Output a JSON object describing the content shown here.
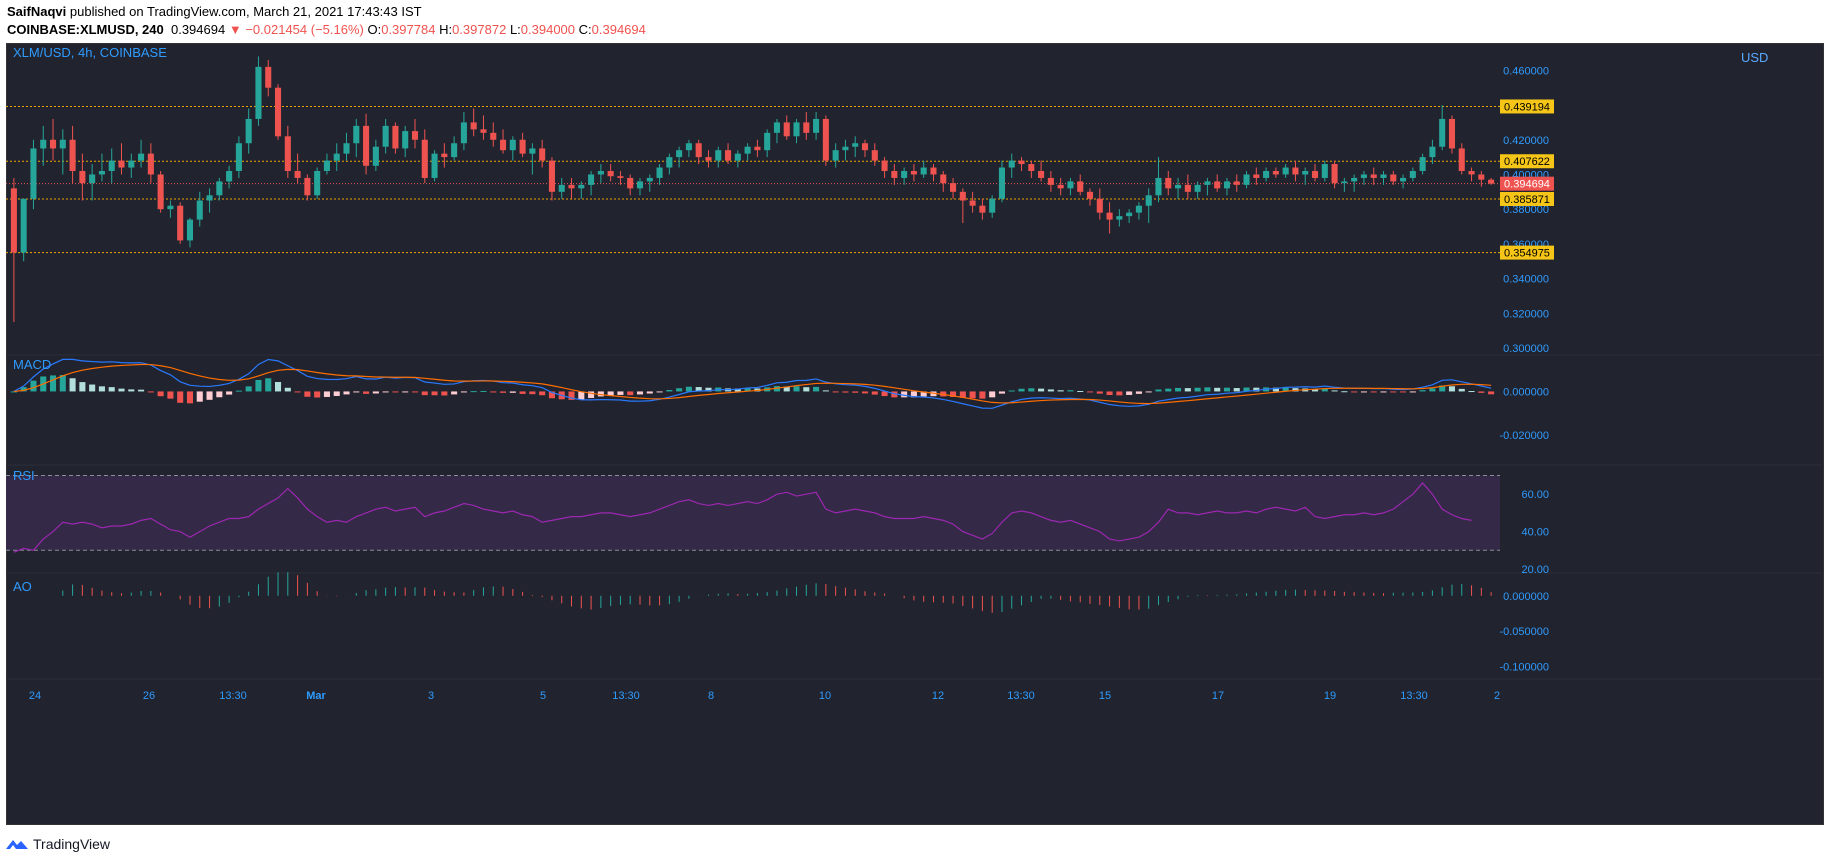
{
  "header": {
    "author": "SaifNaqvi",
    "published": "published on TradingView.com, March 21, 2021 17:43:43 IST",
    "symbol": "COINBASE:XLMUSD, 240",
    "last": "0.394694",
    "change": "▼ −0.021454 (−5.16%)",
    "o_label": "O:",
    "o_value": "0.397784",
    "h_label": "H:",
    "h_value": "0.397872",
    "l_label": "L:",
    "l_value": "0.394000",
    "c_label": "C:",
    "c_value": "0.394694"
  },
  "footer": {
    "brand": "TradingView"
  },
  "colors": {
    "background": "#21242e",
    "up": "#26a69a",
    "down": "#ef5350",
    "axis_text": "#2f9bff",
    "level_line": "#f0a500",
    "level_label_bg": "#f5c518",
    "last_price_bg": "#ef5350",
    "macd_line": "#2979ff",
    "signal_line": "#ff6d00",
    "rsi_line": "#9c27b0",
    "rsi_band": "#3a2a4e",
    "ao_up": "#26a69a",
    "ao_down": "#ef5350"
  },
  "chart_data": {
    "type": "candlestick",
    "title": "XLM/USD, 4h, COINBASE",
    "y_unit": "USD",
    "price_axis_ticks": [
      "0.460000",
      "0.420000",
      "0.400000",
      "0.380000",
      "0.360000",
      "0.340000",
      "0.320000",
      "0.300000"
    ],
    "price_range": [
      0.3,
      0.47
    ],
    "x_tick_labels": [
      "24",
      "26",
      "13:30",
      "Mar",
      "3",
      "5",
      "13:30",
      "8",
      "10",
      "12",
      "13:30",
      "15",
      "17",
      "19",
      "13:30",
      "2"
    ],
    "horizontal_levels": [
      0.439194,
      0.407622,
      0.385871,
      0.354975
    ],
    "level_labels": [
      "0.439194",
      "0.407622",
      "0.385871",
      "0.354975"
    ],
    "last_price": 0.394694,
    "last_price_label": "0.394694",
    "candles_ohlc": [
      [
        0.392,
        0.398,
        0.315,
        0.355
      ],
      [
        0.355,
        0.362,
        0.35,
        0.386
      ],
      [
        0.386,
        0.42,
        0.38,
        0.415
      ],
      [
        0.415,
        0.428,
        0.405,
        0.42
      ],
      [
        0.42,
        0.432,
        0.408,
        0.415
      ],
      [
        0.415,
        0.426,
        0.4,
        0.42
      ],
      [
        0.42,
        0.428,
        0.395,
        0.402
      ],
      [
        0.402,
        0.412,
        0.385,
        0.395
      ],
      [
        0.395,
        0.406,
        0.385,
        0.4
      ],
      [
        0.4,
        0.412,
        0.396,
        0.402
      ],
      [
        0.402,
        0.415,
        0.395,
        0.408
      ],
      [
        0.408,
        0.418,
        0.4,
        0.404
      ],
      [
        0.404,
        0.412,
        0.398,
        0.408
      ],
      [
        0.408,
        0.42,
        0.404,
        0.412
      ],
      [
        0.412,
        0.418,
        0.395,
        0.4
      ],
      [
        0.4,
        0.402,
        0.378,
        0.38
      ],
      [
        0.38,
        0.385,
        0.375,
        0.382
      ],
      [
        0.382,
        0.384,
        0.36,
        0.362
      ],
      [
        0.362,
        0.375,
        0.358,
        0.374
      ],
      [
        0.374,
        0.39,
        0.37,
        0.385
      ],
      [
        0.385,
        0.392,
        0.378,
        0.388
      ],
      [
        0.388,
        0.398,
        0.385,
        0.396
      ],
      [
        0.396,
        0.405,
        0.392,
        0.402
      ],
      [
        0.402,
        0.422,
        0.398,
        0.418
      ],
      [
        0.418,
        0.438,
        0.412,
        0.432
      ],
      [
        0.432,
        0.468,
        0.428,
        0.462
      ],
      [
        0.462,
        0.466,
        0.445,
        0.45
      ],
      [
        0.45,
        0.452,
        0.42,
        0.422
      ],
      [
        0.422,
        0.428,
        0.398,
        0.402
      ],
      [
        0.402,
        0.412,
        0.395,
        0.398
      ],
      [
        0.398,
        0.4,
        0.385,
        0.388
      ],
      [
        0.388,
        0.404,
        0.386,
        0.402
      ],
      [
        0.402,
        0.412,
        0.4,
        0.408
      ],
      [
        0.408,
        0.418,
        0.402,
        0.412
      ],
      [
        0.412,
        0.424,
        0.408,
        0.418
      ],
      [
        0.418,
        0.432,
        0.41,
        0.428
      ],
      [
        0.428,
        0.435,
        0.4,
        0.405
      ],
      [
        0.405,
        0.42,
        0.402,
        0.416
      ],
      [
        0.416,
        0.432,
        0.412,
        0.428
      ],
      [
        0.428,
        0.43,
        0.412,
        0.415
      ],
      [
        0.415,
        0.428,
        0.41,
        0.425
      ],
      [
        0.425,
        0.432,
        0.415,
        0.42
      ],
      [
        0.42,
        0.426,
        0.395,
        0.398
      ],
      [
        0.398,
        0.414,
        0.396,
        0.412
      ],
      [
        0.412,
        0.418,
        0.404,
        0.41
      ],
      [
        0.41,
        0.422,
        0.408,
        0.418
      ],
      [
        0.418,
        0.436,
        0.414,
        0.43
      ],
      [
        0.43,
        0.438,
        0.422,
        0.426
      ],
      [
        0.426,
        0.434,
        0.42,
        0.424
      ],
      [
        0.424,
        0.43,
        0.416,
        0.42
      ],
      [
        0.42,
        0.426,
        0.412,
        0.414
      ],
      [
        0.414,
        0.422,
        0.408,
        0.42
      ],
      [
        0.42,
        0.424,
        0.41,
        0.412
      ],
      [
        0.412,
        0.418,
        0.4,
        0.415
      ],
      [
        0.415,
        0.42,
        0.404,
        0.408
      ],
      [
        0.408,
        0.41,
        0.385,
        0.39
      ],
      [
        0.39,
        0.398,
        0.386,
        0.394
      ],
      [
        0.394,
        0.398,
        0.386,
        0.392
      ],
      [
        0.392,
        0.396,
        0.386,
        0.394
      ],
      [
        0.394,
        0.402,
        0.388,
        0.4
      ],
      [
        0.4,
        0.406,
        0.395,
        0.402
      ],
      [
        0.402,
        0.406,
        0.396,
        0.399
      ],
      [
        0.399,
        0.402,
        0.394,
        0.398
      ],
      [
        0.398,
        0.4,
        0.388,
        0.392
      ],
      [
        0.392,
        0.398,
        0.388,
        0.396
      ],
      [
        0.396,
        0.4,
        0.39,
        0.398
      ],
      [
        0.398,
        0.406,
        0.394,
        0.404
      ],
      [
        0.404,
        0.412,
        0.4,
        0.41
      ],
      [
        0.41,
        0.416,
        0.404,
        0.414
      ],
      [
        0.414,
        0.42,
        0.41,
        0.418
      ],
      [
        0.418,
        0.42,
        0.406,
        0.41
      ],
      [
        0.41,
        0.414,
        0.404,
        0.408
      ],
      [
        0.408,
        0.416,
        0.404,
        0.414
      ],
      [
        0.414,
        0.418,
        0.406,
        0.408
      ],
      [
        0.408,
        0.414,
        0.404,
        0.412
      ],
      [
        0.412,
        0.418,
        0.408,
        0.416
      ],
      [
        0.416,
        0.42,
        0.41,
        0.414
      ],
      [
        0.414,
        0.426,
        0.41,
        0.424
      ],
      [
        0.424,
        0.432,
        0.418,
        0.43
      ],
      [
        0.43,
        0.434,
        0.42,
        0.422
      ],
      [
        0.422,
        0.432,
        0.418,
        0.43
      ],
      [
        0.43,
        0.436,
        0.42,
        0.424
      ],
      [
        0.424,
        0.436,
        0.42,
        0.432
      ],
      [
        0.432,
        0.434,
        0.405,
        0.408
      ],
      [
        0.408,
        0.418,
        0.404,
        0.414
      ],
      [
        0.414,
        0.42,
        0.408,
        0.416
      ],
      [
        0.416,
        0.422,
        0.41,
        0.418
      ],
      [
        0.418,
        0.42,
        0.41,
        0.414
      ],
      [
        0.414,
        0.418,
        0.405,
        0.408
      ],
      [
        0.408,
        0.41,
        0.398,
        0.402
      ],
      [
        0.402,
        0.406,
        0.394,
        0.398
      ],
      [
        0.398,
        0.404,
        0.394,
        0.402
      ],
      [
        0.402,
        0.406,
        0.396,
        0.4
      ],
      [
        0.4,
        0.408,
        0.398,
        0.404
      ],
      [
        0.404,
        0.406,
        0.396,
        0.4
      ],
      [
        0.4,
        0.402,
        0.39,
        0.395
      ],
      [
        0.395,
        0.398,
        0.386,
        0.39
      ],
      [
        0.39,
        0.392,
        0.372,
        0.385
      ],
      [
        0.385,
        0.39,
        0.378,
        0.382
      ],
      [
        0.382,
        0.386,
        0.374,
        0.378
      ],
      [
        0.378,
        0.388,
        0.375,
        0.386
      ],
      [
        0.386,
        0.408,
        0.384,
        0.404
      ],
      [
        0.404,
        0.412,
        0.398,
        0.408
      ],
      [
        0.408,
        0.41,
        0.402,
        0.406
      ],
      [
        0.406,
        0.408,
        0.398,
        0.402
      ],
      [
        0.402,
        0.408,
        0.396,
        0.398
      ],
      [
        0.398,
        0.402,
        0.39,
        0.394
      ],
      [
        0.394,
        0.398,
        0.388,
        0.392
      ],
      [
        0.392,
        0.398,
        0.388,
        0.396
      ],
      [
        0.396,
        0.4,
        0.388,
        0.39
      ],
      [
        0.39,
        0.392,
        0.382,
        0.386
      ],
      [
        0.386,
        0.392,
        0.374,
        0.378
      ],
      [
        0.378,
        0.384,
        0.366,
        0.374
      ],
      [
        0.374,
        0.38,
        0.37,
        0.376
      ],
      [
        0.376,
        0.38,
        0.372,
        0.378
      ],
      [
        0.378,
        0.384,
        0.374,
        0.382
      ],
      [
        0.382,
        0.392,
        0.372,
        0.388
      ],
      [
        0.388,
        0.41,
        0.384,
        0.398
      ],
      [
        0.398,
        0.402,
        0.388,
        0.392
      ],
      [
        0.392,
        0.398,
        0.386,
        0.394
      ],
      [
        0.394,
        0.4,
        0.386,
        0.39
      ],
      [
        0.39,
        0.396,
        0.386,
        0.394
      ],
      [
        0.394,
        0.398,
        0.388,
        0.396
      ],
      [
        0.396,
        0.4,
        0.39,
        0.392
      ],
      [
        0.392,
        0.398,
        0.388,
        0.396
      ],
      [
        0.396,
        0.4,
        0.39,
        0.394
      ],
      [
        0.394,
        0.402,
        0.392,
        0.4
      ],
      [
        0.4,
        0.404,
        0.394,
        0.398
      ],
      [
        0.398,
        0.404,
        0.396,
        0.402
      ],
      [
        0.402,
        0.404,
        0.398,
        0.4
      ],
      [
        0.4,
        0.406,
        0.398,
        0.404
      ],
      [
        0.404,
        0.408,
        0.396,
        0.4
      ],
      [
        0.4,
        0.404,
        0.394,
        0.402
      ],
      [
        0.402,
        0.406,
        0.396,
        0.398
      ],
      [
        0.398,
        0.408,
        0.396,
        0.406
      ],
      [
        0.406,
        0.408,
        0.392,
        0.395
      ],
      [
        0.395,
        0.398,
        0.39,
        0.396
      ],
      [
        0.396,
        0.4,
        0.39,
        0.398
      ],
      [
        0.398,
        0.402,
        0.394,
        0.4
      ],
      [
        0.4,
        0.404,
        0.394,
        0.398
      ],
      [
        0.398,
        0.402,
        0.394,
        0.4
      ],
      [
        0.4,
        0.402,
        0.394,
        0.396
      ],
      [
        0.396,
        0.4,
        0.392,
        0.398
      ],
      [
        0.398,
        0.404,
        0.396,
        0.402
      ],
      [
        0.402,
        0.412,
        0.4,
        0.41
      ],
      [
        0.41,
        0.42,
        0.406,
        0.416
      ],
      [
        0.416,
        0.44,
        0.414,
        0.432
      ],
      [
        0.432,
        0.434,
        0.412,
        0.415
      ],
      [
        0.415,
        0.418,
        0.4,
        0.402
      ],
      [
        0.402,
        0.404,
        0.396,
        0.4
      ],
      [
        0.4,
        0.402,
        0.393,
        0.397
      ],
      [
        0.397,
        0.398,
        0.394,
        0.3947
      ]
    ],
    "macd_axis_ticks": [
      "0.000000",
      "-0.020000"
    ],
    "macd_range": [
      -0.032,
      0.014
    ],
    "macd_title": "MACD",
    "rsi_axis_ticks": [
      "60.00",
      "40.00",
      "20.00"
    ],
    "rsi_range": [
      20,
      74
    ],
    "rsi_bands": [
      70,
      30
    ],
    "rsi_title": "RSI",
    "rsi_values": [
      29,
      31,
      30,
      36,
      40,
      45,
      44,
      45,
      44,
      42,
      43,
      43,
      44,
      46,
      47,
      44,
      41,
      40,
      37,
      40,
      43,
      45,
      47,
      47,
      48,
      52,
      55,
      58,
      63,
      58,
      52,
      48,
      45,
      46,
      45,
      48,
      50,
      52,
      53,
      51,
      52,
      53,
      48,
      50,
      51,
      53,
      55,
      54,
      52,
      51,
      50,
      51,
      49,
      48,
      45,
      46,
      47,
      48,
      48,
      49,
      50,
      50,
      49,
      48,
      49,
      50,
      52,
      54,
      56,
      57,
      55,
      54,
      55,
      54,
      55,
      56,
      55,
      57,
      60,
      61,
      59,
      60,
      61,
      52,
      50,
      51,
      52,
      51,
      50,
      48,
      47,
      47,
      47,
      48,
      47,
      46,
      44,
      40,
      38,
      36,
      39,
      45,
      50,
      51,
      50,
      48,
      46,
      45,
      46,
      44,
      42,
      40,
      36,
      35,
      36,
      37,
      40,
      45,
      52,
      50,
      50,
      49,
      50,
      51,
      50,
      50,
      51,
      50,
      52,
      53,
      52,
      51,
      53,
      48,
      47,
      48,
      49,
      49,
      50,
      49,
      50,
      52,
      56,
      60,
      66,
      60,
      52,
      49,
      47,
      46
    ],
    "ao_axis_ticks": [
      "0.000000",
      "-0.050000",
      "-0.100000"
    ],
    "ao_range": [
      -0.118,
      0.028
    ],
    "ao_title": "AO"
  }
}
